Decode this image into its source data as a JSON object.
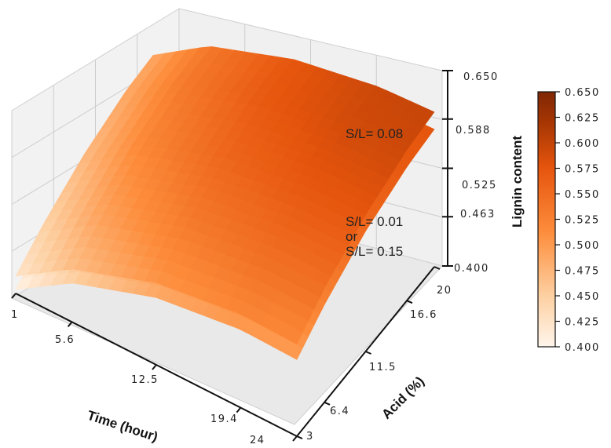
{
  "chart_data": {
    "type": "surface3d",
    "xlabel": "Time (hour)",
    "ylabel": "Acid (%)",
    "zlabel": "Lignin content",
    "x_ticks": [
      "1",
      "5.6",
      "12.5",
      "19.4",
      "24"
    ],
    "y_ticks": [
      "3",
      "6.4",
      "11.5",
      "16.6",
      "20"
    ],
    "z_ticks": [
      "0.400",
      "0.463",
      "0.525",
      "0.588",
      "0.650"
    ],
    "xlim": [
      1,
      24
    ],
    "ylim": [
      3,
      20
    ],
    "zlim": [
      0.4,
      0.65
    ],
    "grid": true,
    "colorbar": {
      "label": "Lignin content",
      "ticks": [
        "0.650",
        "0.625",
        "0.600",
        "0.575",
        "0.550",
        "0.525",
        "0.500",
        "0.475",
        "0.450",
        "0.425",
        "0.400"
      ],
      "range": [
        0.4,
        0.65
      ],
      "colors": [
        "#fff5eb",
        "#fdd0a2",
        "#fd8d3c",
        "#e6550d",
        "#a63603",
        "#7f2704"
      ]
    },
    "series": [
      {
        "name": "S/L= 0.08",
        "annotation": "S/L= 0.08",
        "grid_time": [
          1,
          5.6,
          12.5,
          19.4,
          24
        ],
        "grid_acid": [
          3,
          6.4,
          11.5,
          16.6,
          20
        ],
        "z": [
          [
            0.422,
            0.445,
            0.47,
            0.485,
            0.488
          ],
          [
            0.468,
            0.492,
            0.518,
            0.533,
            0.536
          ],
          [
            0.505,
            0.53,
            0.556,
            0.571,
            0.574
          ],
          [
            0.52,
            0.546,
            0.573,
            0.59,
            0.594
          ],
          [
            0.518,
            0.546,
            0.575,
            0.593,
            0.598
          ]
        ]
      },
      {
        "name": "S/L= 0.01 or S/L= 0.15",
        "annotation": [
          "S/L= 0.01",
          "or",
          "S/L= 0.15"
        ],
        "grid_time": [
          1,
          5.6,
          12.5,
          19.4,
          24
        ],
        "grid_acid": [
          3,
          6.4,
          11.5,
          16.6,
          20
        ],
        "z": [
          [
            0.405,
            0.428,
            0.452,
            0.466,
            0.469
          ],
          [
            0.45,
            0.474,
            0.499,
            0.514,
            0.517
          ],
          [
            0.486,
            0.511,
            0.537,
            0.552,
            0.555
          ],
          [
            0.5,
            0.526,
            0.553,
            0.569,
            0.573
          ],
          [
            0.498,
            0.525,
            0.554,
            0.571,
            0.576
          ]
        ]
      }
    ]
  }
}
